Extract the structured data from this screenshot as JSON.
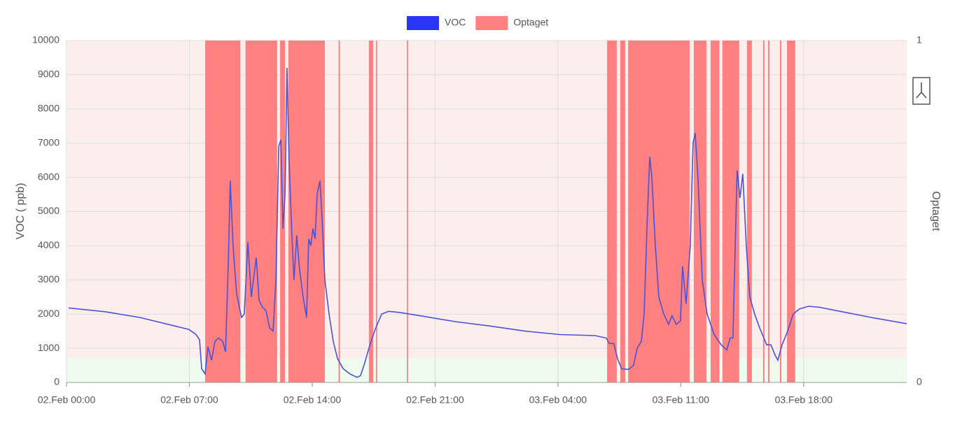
{
  "chart_data": {
    "type": "line",
    "xlim": [
      0,
      47.87
    ],
    "xticks": [
      {
        "value": 0,
        "label": "02.Feb 00:00"
      },
      {
        "value": 7,
        "label": "02.Feb 07:00"
      },
      {
        "value": 14,
        "label": "02.Feb 14:00"
      },
      {
        "value": 21,
        "label": "02.Feb 21:00"
      },
      {
        "value": 28,
        "label": "03.Feb 04:00"
      },
      {
        "value": 35,
        "label": "03.Feb 11:00"
      },
      {
        "value": 42,
        "label": "03.Feb 18:00"
      }
    ],
    "ylim": [
      0,
      10000
    ],
    "yticks": [
      0,
      1000,
      2000,
      3000,
      4000,
      5000,
      6000,
      7000,
      8000,
      9000,
      10000
    ],
    "y_label": "VOC ( ppb)",
    "y2lim": [
      0,
      1
    ],
    "y2ticks": [
      0,
      1
    ],
    "y2_label": "Optaget",
    "grid": true,
    "legend": "top",
    "zones": [
      {
        "from": 0,
        "to": 700,
        "color": "#eefbee"
      },
      {
        "from": 700,
        "to": 10000,
        "color": "#fdeeee"
      }
    ],
    "series": [
      {
        "name": "VOC",
        "color": "#2b35f5",
        "line_color": "#4a52d8",
        "x": [
          0.12,
          2.19,
          4.19,
          6.18,
          6.98,
          7.38,
          7.58,
          7.7,
          7.9,
          8.06,
          8.26,
          8.46,
          8.66,
          8.9,
          9.06,
          9.22,
          9.33,
          9.49,
          9.69,
          9.97,
          10.13,
          10.33,
          10.53,
          10.65,
          10.81,
          10.97,
          11.17,
          11.37,
          11.57,
          11.77,
          11.93,
          12.09,
          12.21,
          12.33,
          12.45,
          12.56,
          12.68,
          12.84,
          12.96,
          13.12,
          13.28,
          13.48,
          13.68,
          13.8,
          13.92,
          14.04,
          14.16,
          14.28,
          14.44,
          14.56,
          14.72,
          14.96,
          15.2,
          15.44,
          15.76,
          16.15,
          16.55,
          16.75,
          16.95,
          17.23,
          17.55,
          17.95,
          18.35,
          18.95,
          20.14,
          22.14,
          24.13,
          26.13,
          28.12,
          30.12,
          30.75,
          30.91,
          31.19,
          31.39,
          31.63,
          32.03,
          32.31,
          32.51,
          32.75,
          32.91,
          33.07,
          33.23,
          33.35,
          33.55,
          33.75,
          34.03,
          34.3,
          34.5,
          34.74,
          34.98,
          35.1,
          35.3,
          35.54,
          35.7,
          35.82,
          35.98,
          36.22,
          36.5,
          36.9,
          37.3,
          37.62,
          37.81,
          37.97,
          38.21,
          38.37,
          38.53,
          38.73,
          38.93,
          39.21,
          39.49,
          39.89,
          40.13,
          40.37,
          40.53,
          40.77,
          41.09,
          41.4,
          41.76,
          42.28,
          42.88,
          44.08,
          46.07,
          47.87
        ],
        "values": [
          2180,
          2070,
          1900,
          1650,
          1550,
          1400,
          1250,
          400,
          250,
          1050,
          650,
          1200,
          1300,
          1200,
          900,
          3500,
          5900,
          4000,
          2600,
          1900,
          2000,
          4100,
          2500,
          3000,
          3650,
          2400,
          2200,
          2100,
          1600,
          1500,
          3000,
          6900,
          7100,
          4500,
          5500,
          9200,
          6500,
          4300,
          3000,
          4300,
          3300,
          2500,
          1900,
          4200,
          4000,
          4500,
          4200,
          5500,
          5900,
          4800,
          3000,
          2000,
          1200,
          700,
          400,
          250,
          150,
          200,
          500,
          1000,
          1500,
          2000,
          2080,
          2050,
          1950,
          1780,
          1650,
          1500,
          1400,
          1370,
          1300,
          1150,
          1130,
          700,
          400,
          380,
          500,
          1000,
          1200,
          2000,
          4500,
          6600,
          6000,
          4000,
          2500,
          2000,
          1700,
          1950,
          1700,
          1800,
          3400,
          2300,
          4000,
          7000,
          7300,
          6000,
          3000,
          2000,
          1400,
          1100,
          950,
          1300,
          1300,
          6200,
          5400,
          6100,
          4000,
          2500,
          2000,
          1600,
          1100,
          1100,
          800,
          650,
          1100,
          1500,
          2000,
          2150,
          2230,
          2200,
          2080,
          1880,
          1720
        ]
      },
      {
        "name": "Optaget",
        "color": "#ff8080",
        "axis": "y2",
        "x_ranges": [
          [
            7.9,
            9.9
          ],
          [
            10.2,
            12.0
          ],
          [
            12.17,
            12.45
          ],
          [
            12.64,
            14.72
          ],
          [
            15.5,
            15.58
          ],
          [
            17.23,
            17.47
          ],
          [
            17.63,
            17.7
          ],
          [
            19.39,
            19.46
          ],
          [
            30.8,
            31.35
          ],
          [
            31.55,
            31.83
          ],
          [
            32.0,
            35.5
          ],
          [
            35.74,
            36.46
          ],
          [
            36.7,
            37.2
          ],
          [
            37.37,
            38.33
          ],
          [
            38.77,
            39.05
          ],
          [
            39.69,
            39.77
          ],
          [
            39.97,
            40.05
          ],
          [
            40.65,
            40.73
          ],
          [
            41.05,
            41.52
          ]
        ],
        "values": [
          1,
          1,
          1,
          1,
          1,
          1,
          1,
          1,
          1,
          1,
          1,
          1,
          1,
          1,
          1,
          1,
          1,
          1,
          1
        ]
      }
    ]
  }
}
